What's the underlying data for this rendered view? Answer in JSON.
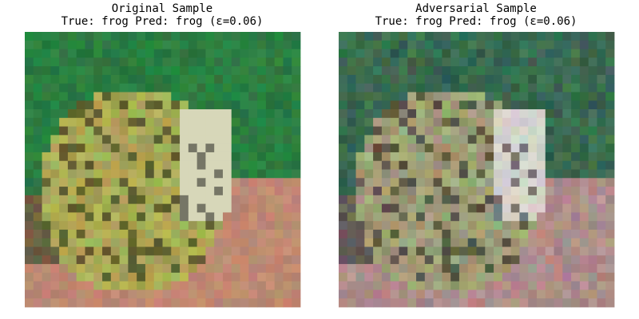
{
  "panels": [
    {
      "title": "Original Sample",
      "subtitle": "True: frog Pred: frog (ε=0.06)"
    },
    {
      "title": "Adversarial Sample",
      "subtitle": "True: frog Pred: frog (ε=0.06)"
    }
  ]
}
